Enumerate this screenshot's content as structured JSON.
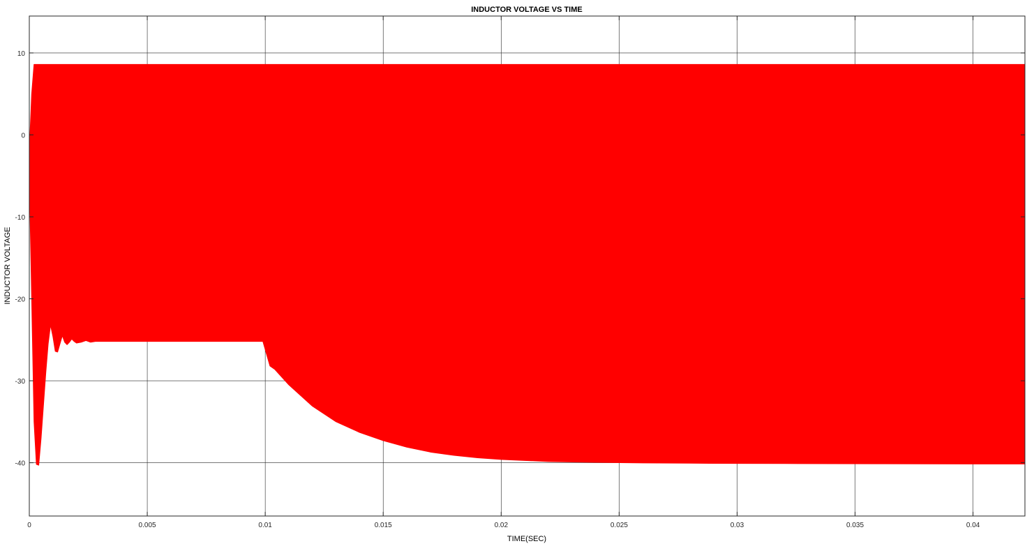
{
  "chart_data": {
    "type": "area",
    "title": "INDUCTOR VOLTAGE VS TIME",
    "xlabel": "TIME(SEC)",
    "ylabel": "INDUCTOR VOLTAGE",
    "xlim": [
      0,
      0.0422
    ],
    "ylim": [
      -46.5,
      14.5
    ],
    "xticks": [
      0,
      0.005,
      0.01,
      0.015,
      0.02,
      0.025,
      0.03,
      0.035,
      0.04
    ],
    "xtick_labels": [
      "0",
      "0.005",
      "0.01",
      "0.015",
      "0.02",
      "0.025",
      "0.03",
      "0.035",
      "0.04"
    ],
    "yticks": [
      -40,
      -30,
      -20,
      -10,
      0,
      10
    ],
    "ytick_labels": [
      "-40",
      "-30",
      "-20",
      "-10",
      "0",
      "10"
    ],
    "grid": true,
    "series": [
      {
        "color": "#ff0000",
        "upper_envelope": {
          "x": [
            0,
            0.0001,
            0.0002,
            0.0422
          ],
          "y": [
            -2,
            5,
            8.6,
            8.6
          ]
        },
        "lower_envelope": {
          "x": [
            0,
            0.0001,
            0.0002,
            0.0003,
            0.0004,
            0.0005,
            0.0006,
            0.0007,
            0.0008,
            0.0009,
            0.001,
            0.0011,
            0.0012,
            0.0013,
            0.0014,
            0.0015,
            0.0016,
            0.0017,
            0.0018,
            0.0019,
            0.002,
            0.0022,
            0.0024,
            0.0026,
            0.0028,
            0.003,
            0.0032,
            0.0034,
            0.0036,
            0.0038,
            0.004,
            0.005,
            0.006,
            0.007,
            0.008,
            0.009,
            0.0099,
            0.01,
            0.0102,
            0.0104,
            0.011,
            0.012,
            0.013,
            0.014,
            0.015,
            0.016,
            0.017,
            0.018,
            0.019,
            0.02,
            0.022,
            0.024,
            0.026,
            0.028,
            0.03,
            0.032,
            0.034,
            0.036,
            0.038,
            0.04,
            0.0422
          ],
          "y": [
            -5,
            -20,
            -35,
            -40.2,
            -40.3,
            -37,
            -33,
            -29,
            -25.5,
            -23.2,
            -24.6,
            -26.4,
            -26.5,
            -25.5,
            -24.5,
            -25.3,
            -25.6,
            -25.3,
            -24.9,
            -25.2,
            -25.4,
            -25.3,
            -25.1,
            -25.3,
            -25.2,
            -25.2,
            -25.2,
            -25.2,
            -25.2,
            -25.2,
            -25.2,
            -25.2,
            -25.2,
            -25.2,
            -25.2,
            -25.2,
            -25.2,
            -26.2,
            -28.2,
            -28.6,
            -30.5,
            -33.1,
            -35,
            -36.3,
            -37.3,
            -38.1,
            -38.7,
            -39.1,
            -39.4,
            -39.6,
            -39.85,
            -39.95,
            -40.02,
            -40.06,
            -40.09,
            -40.1,
            -40.12,
            -40.13,
            -40.14,
            -40.15,
            -40.15
          ]
        }
      }
    ]
  }
}
